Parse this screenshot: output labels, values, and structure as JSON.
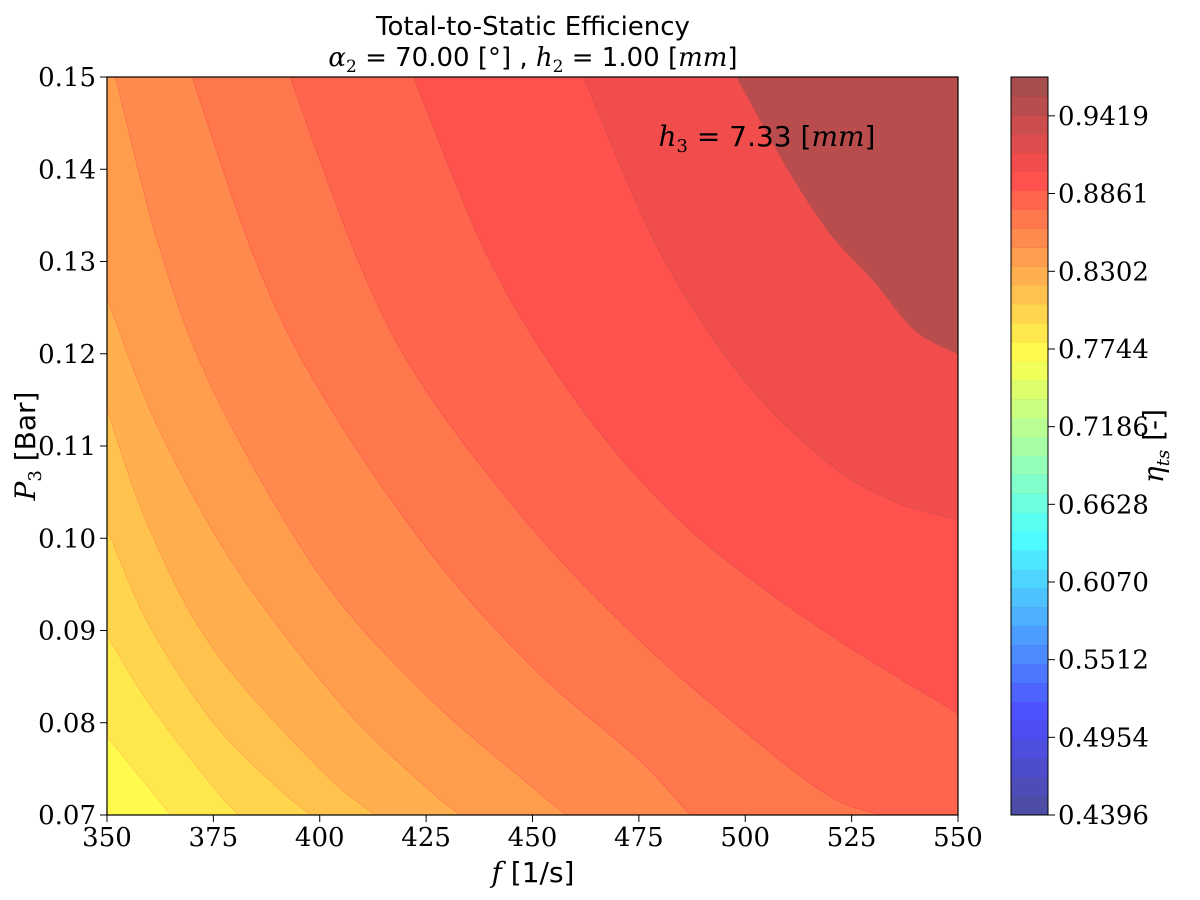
{
  "chart_data": {
    "type": "contour",
    "title": "Total-to-Static Efficiency",
    "subtitle": {
      "alpha_sym": "α",
      "alpha_sub": "2",
      "alpha_rest": " = 70.00 [°] , ",
      "h_sym": "h",
      "h_sub": "2",
      "h_eq": " = 1.00 [",
      "h_unit": "mm",
      "h_close": "]"
    },
    "xlabel": {
      "sym": "f",
      "rest": "  [1/s]"
    },
    "ylabel": {
      "sym": "P",
      "sub": "3",
      "rest": " [Bar]"
    },
    "xlim": [
      350,
      550
    ],
    "ylim": [
      0.07,
      0.15
    ],
    "x_ticks": [
      350,
      375,
      400,
      425,
      450,
      475,
      500,
      525,
      550
    ],
    "x_tick_labels": [
      "350",
      "375",
      "400",
      "425",
      "450",
      "475",
      "500",
      "525",
      "550"
    ],
    "y_ticks": [
      0.07,
      0.08,
      0.09,
      0.1,
      0.11,
      0.12,
      0.13,
      0.14,
      0.15
    ],
    "y_tick_labels": [
      "0.07",
      "0.08",
      "0.09",
      "0.10",
      "0.11",
      "0.12",
      "0.13",
      "0.14",
      "0.15"
    ],
    "annotation": {
      "sym": "h",
      "sub": "3",
      "eq": " = 7.33 [",
      "unit": "mm",
      "close": "]"
    },
    "colorbar": {
      "label_sym": "η",
      "label_sub": "ts",
      "label_rest": " [-]",
      "min": 0.4396,
      "max": 0.9698,
      "levels": 39,
      "colormap": "jet",
      "alpha": 0.7,
      "tick_values": [
        0.4396,
        0.4954,
        0.5512,
        0.607,
        0.6628,
        0.7186,
        0.7744,
        0.8302,
        0.8861,
        0.9419
      ],
      "tick_labels": [
        "0.4396",
        "0.4954",
        "0.5512",
        "0.6070",
        "0.6628",
        "0.7186",
        "0.7744",
        "0.8302",
        "0.8861",
        "0.9419"
      ]
    },
    "contour_breaks": [
      {
        "level": 0.7883,
        "p_at_x": [
          [
            350,
            0.0785
          ],
          [
            365,
            0.07
          ]
        ]
      },
      {
        "level": 0.8022,
        "p_at_x": [
          [
            350,
            0.0895
          ],
          [
            360,
            0.082
          ],
          [
            375,
            0.073
          ],
          [
            381,
            0.07
          ]
        ]
      },
      {
        "level": 0.8162,
        "p_at_x": [
          [
            350,
            0.101
          ],
          [
            360,
            0.0905
          ],
          [
            375,
            0.08
          ],
          [
            390,
            0.073
          ],
          [
            398,
            0.07
          ]
        ]
      },
      {
        "level": 0.8302,
        "p_at_x": [
          [
            350,
            0.114
          ],
          [
            360,
            0.101
          ],
          [
            375,
            0.088
          ],
          [
            400,
            0.075
          ],
          [
            413,
            0.07
          ]
        ]
      },
      {
        "level": 0.8441,
        "p_at_x": [
          [
            350,
            0.126
          ],
          [
            362,
            0.112
          ],
          [
            380,
            0.097
          ],
          [
            405,
            0.082
          ],
          [
            425,
            0.073
          ],
          [
            433,
            0.07
          ]
        ]
      },
      {
        "level": 0.8581,
        "p_at_x": [
          [
            352,
            0.15
          ],
          [
            362,
            0.132
          ],
          [
            375,
            0.116
          ],
          [
            400,
            0.096
          ],
          [
            425,
            0.083
          ],
          [
            450,
            0.073
          ],
          [
            458,
            0.07
          ]
        ]
      },
      {
        "level": 0.8721,
        "p_at_x": [
          [
            370,
            0.15
          ],
          [
            385,
            0.13
          ],
          [
            400,
            0.116
          ],
          [
            425,
            0.099
          ],
          [
            450,
            0.086
          ],
          [
            475,
            0.076
          ],
          [
            487,
            0.07
          ]
        ]
      },
      {
        "level": 0.8861,
        "p_at_x": [
          [
            393,
            0.15
          ],
          [
            410,
            0.129
          ],
          [
            425,
            0.116
          ],
          [
            450,
            0.101
          ],
          [
            475,
            0.089
          ],
          [
            500,
            0.079
          ],
          [
            520,
            0.072
          ],
          [
            532,
            0.07
          ]
        ]
      },
      {
        "level": 0.9,
        "p_at_x": [
          [
            422,
            0.15
          ],
          [
            440,
            0.13
          ],
          [
            460,
            0.115
          ],
          [
            480,
            0.104
          ],
          [
            500,
            0.096
          ],
          [
            525,
            0.088
          ],
          [
            550,
            0.081
          ]
        ]
      },
      {
        "level": 0.914,
        "p_at_x": [
          [
            462,
            0.15
          ],
          [
            480,
            0.131
          ],
          [
            500,
            0.117
          ],
          [
            520,
            0.108
          ],
          [
            535,
            0.104
          ],
          [
            550,
            0.102
          ]
        ]
      },
      {
        "level": 0.928,
        "p_at_x": [
          [
            498,
            0.15
          ],
          [
            510,
            0.14
          ],
          [
            520,
            0.133
          ],
          [
            530,
            0.128
          ],
          [
            540,
            0.1225
          ],
          [
            550,
            0.12
          ]
        ]
      }
    ],
    "peak_level": 0.9558
  }
}
